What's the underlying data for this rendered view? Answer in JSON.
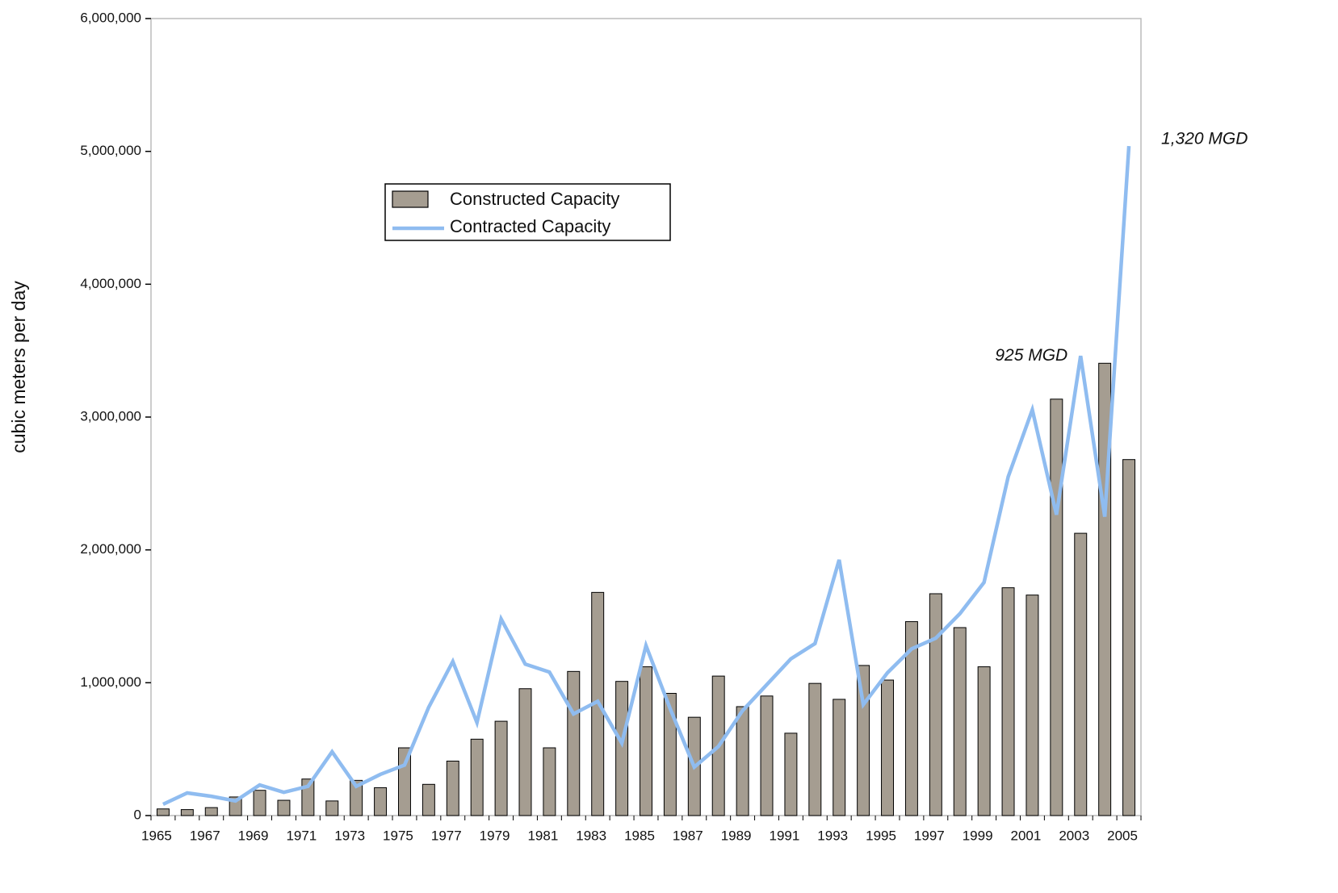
{
  "chart_data": {
    "type": "bar",
    "y_label": "cubic meters per day",
    "categories": [
      "1965",
      null,
      "1967",
      null,
      "1969",
      null,
      "1971",
      null,
      "1973",
      null,
      "1975",
      null,
      "1977",
      null,
      "1979",
      null,
      "1981",
      null,
      "1983",
      null,
      "1985",
      null,
      "1987",
      null,
      "1989",
      null,
      "1991",
      null,
      "1993",
      null,
      "1995",
      null,
      "1997",
      null,
      "1999",
      null,
      "2001",
      null,
      "2003",
      null,
      "2005"
    ],
    "series": [
      {
        "name": "Constructed Capacity",
        "type": "bar",
        "color": "#a59d91",
        "values": [
          50000,
          45000,
          60000,
          140000,
          190000,
          115000,
          275000,
          110000,
          265000,
          210000,
          510000,
          235000,
          410000,
          575000,
          710000,
          955000,
          510000,
          1085000,
          1680000,
          1010000,
          1120000,
          920000,
          740000,
          1050000,
          820000,
          900000,
          620000,
          995000,
          875000,
          1130000,
          1020000,
          1460000,
          1670000,
          1415000,
          1120000,
          1715000,
          1660000,
          3135000,
          2125000,
          3405000,
          2680000
        ]
      },
      {
        "name": "Contracted Capacity",
        "type": "line",
        "color": "#8fbcf0",
        "values": [
          85000,
          170000,
          145000,
          110000,
          230000,
          175000,
          220000,
          480000,
          220000,
          310000,
          380000,
          815000,
          1160000,
          700000,
          1480000,
          1140000,
          1080000,
          765000,
          860000,
          545000,
          1280000,
          805000,
          365000,
          520000,
          790000,
          985000,
          1180000,
          1295000,
          1925000,
          835000,
          1075000,
          1255000,
          1335000,
          1520000,
          1755000,
          2550000,
          3055000,
          2265000,
          3460000,
          2250000,
          5040000
        ]
      }
    ],
    "ylim": [
      0,
      6000000
    ],
    "yticks": [
      0,
      {
        "value": 1000000,
        "label": "1,000,000"
      },
      {
        "value": 2000000,
        "label": "2,000,000"
      },
      {
        "value": 3000000,
        "label": "3,000,000"
      },
      {
        "value": 4000000,
        "label": "4,000,000"
      },
      {
        "value": 5000000,
        "label": "5,000,000"
      },
      {
        "value": 6000000,
        "label": "6,000,000"
      }
    ],
    "annotations": [
      {
        "text": "925 MGD",
        "category": "2003"
      },
      {
        "text": "1,320 MGD",
        "category": "2005"
      }
    ]
  }
}
